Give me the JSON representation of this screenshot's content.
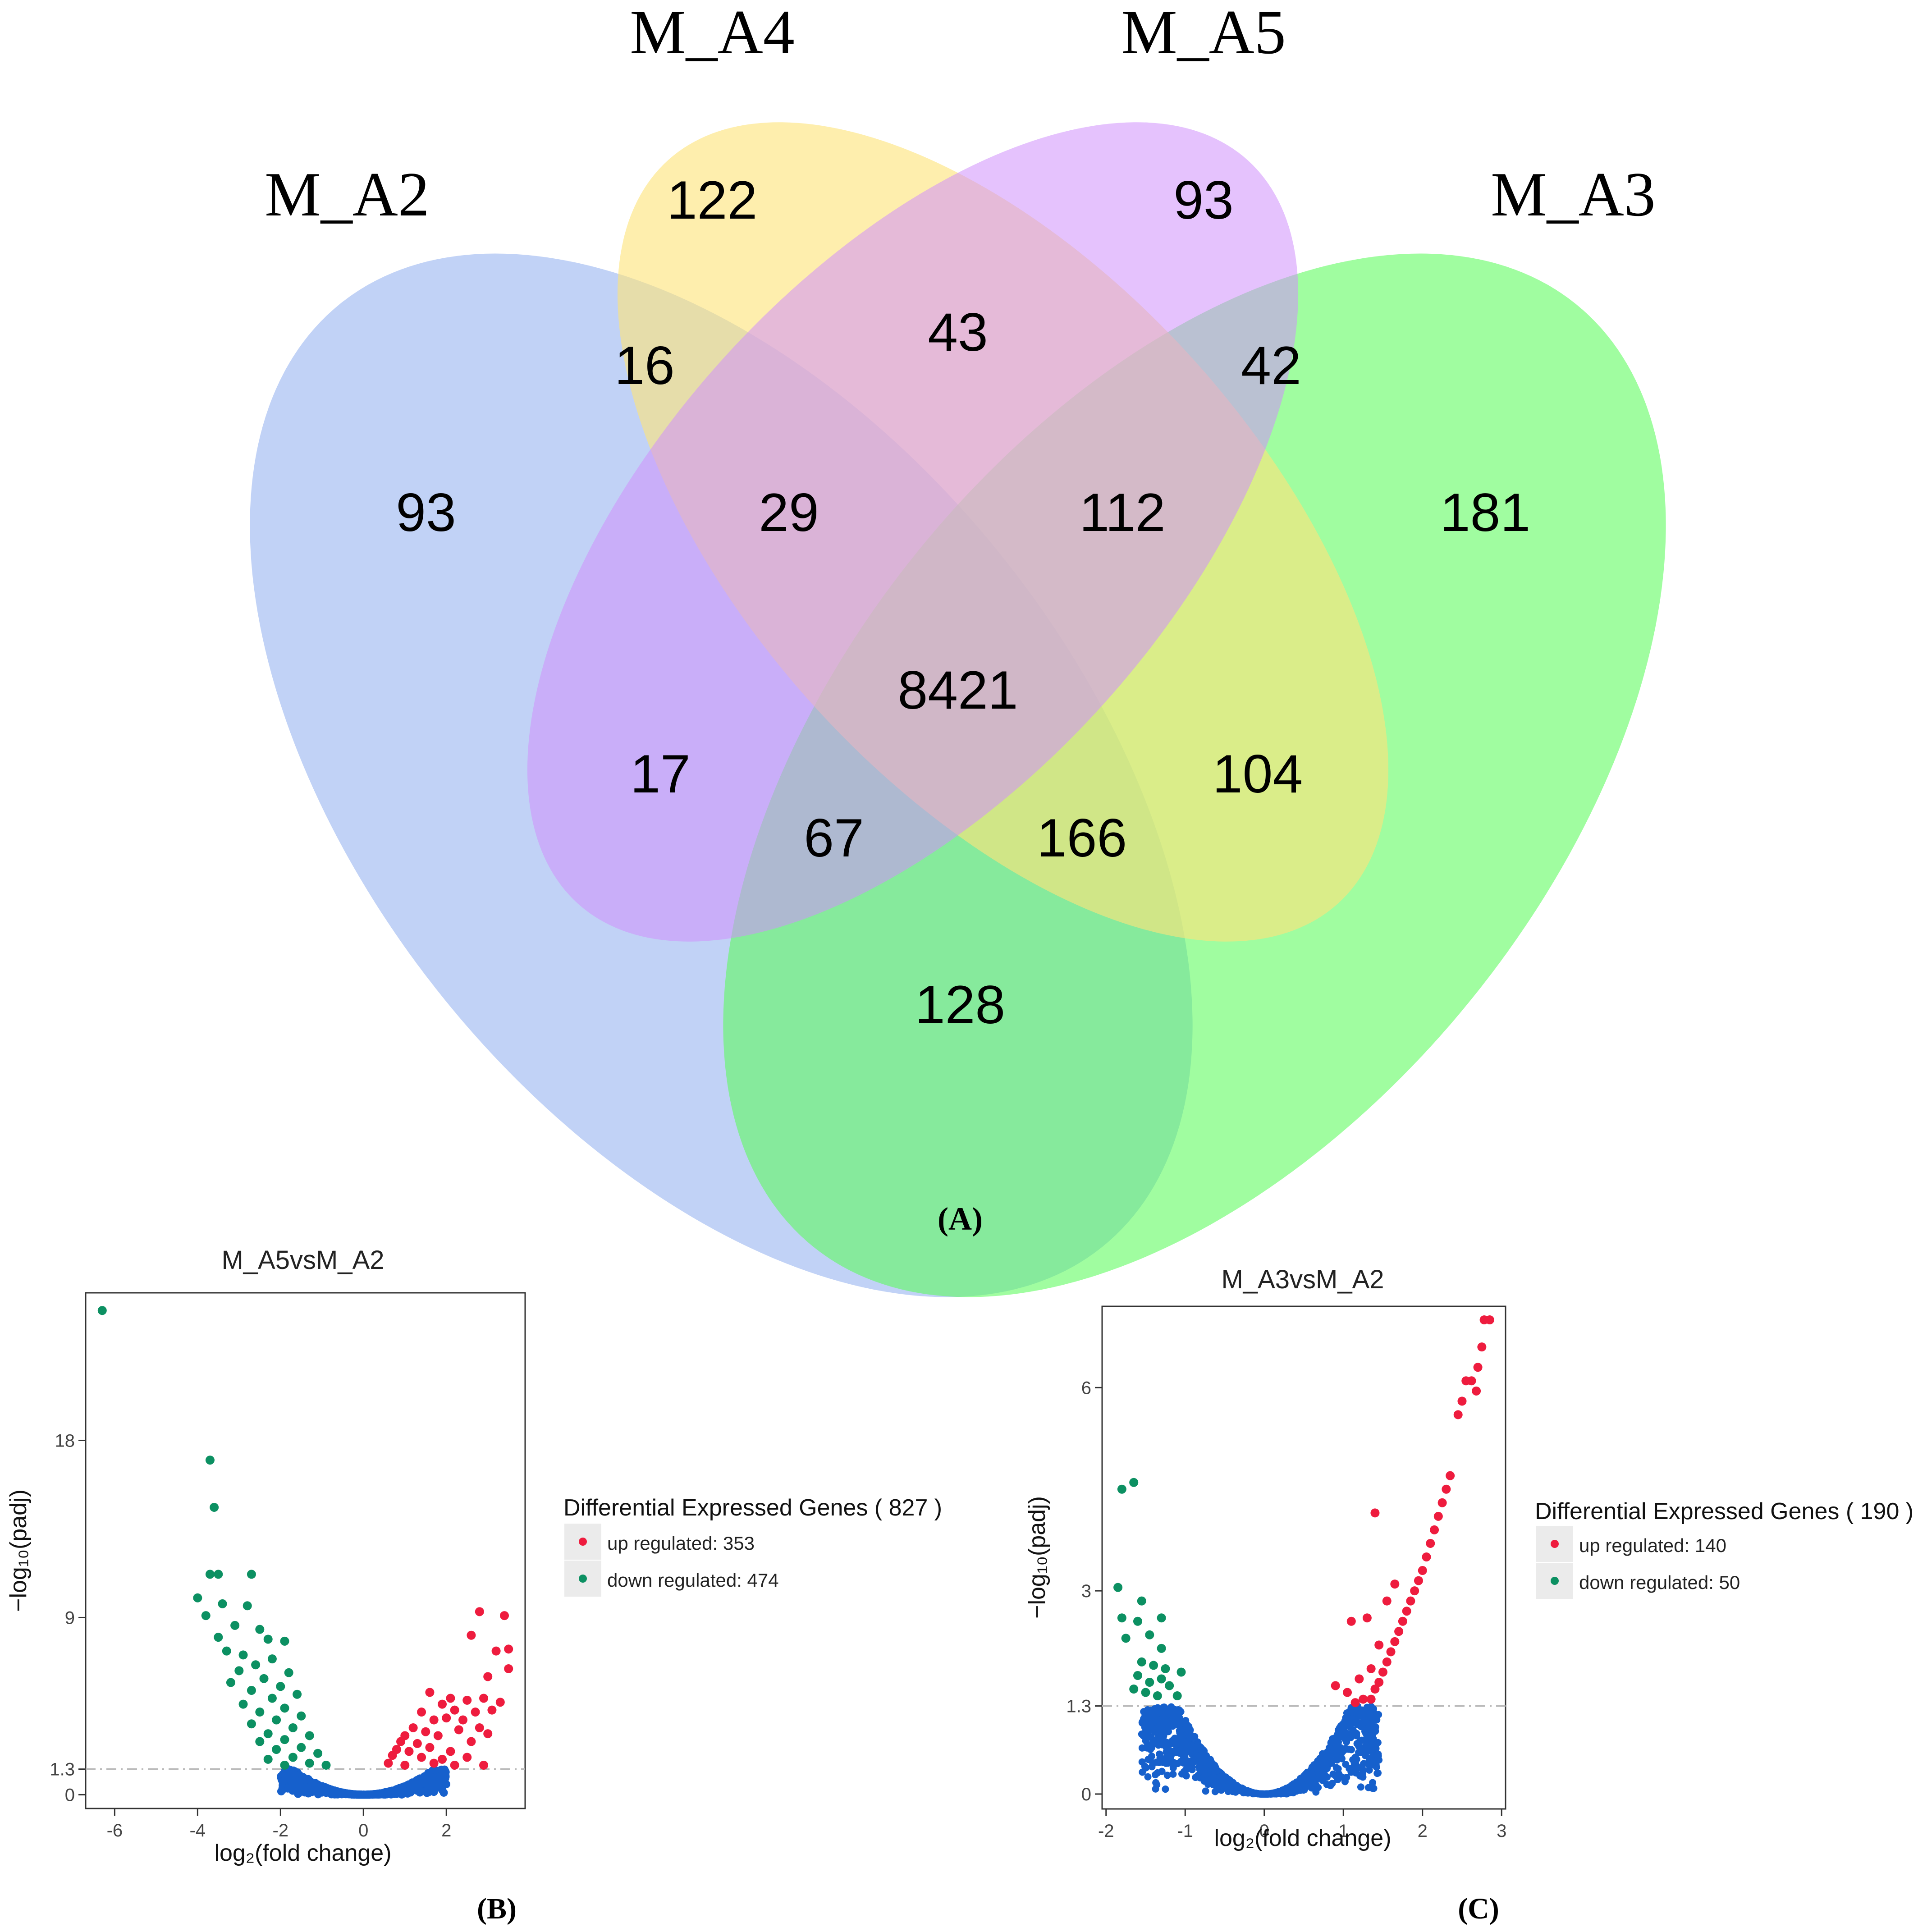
{
  "chart_data": [
    {
      "type": "venn",
      "panel_label": "(A)",
      "sets": [
        {
          "name": "M_A2",
          "color": "#a9c1f3"
        },
        {
          "name": "M_A4",
          "color": "#fde37a"
        },
        {
          "name": "M_A5",
          "color": "#cf90fb"
        },
        {
          "name": "M_A3",
          "color": "#5cfb5c"
        }
      ],
      "regions": [
        {
          "sets": [
            "M_A4"
          ],
          "value": "122"
        },
        {
          "sets": [
            "M_A5"
          ],
          "value": "93"
        },
        {
          "sets": [
            "M_A2",
            "M_A4"
          ],
          "value": "16"
        },
        {
          "sets": [
            "M_A4",
            "M_A5"
          ],
          "value": "43"
        },
        {
          "sets": [
            "M_A5",
            "M_A3"
          ],
          "value": "42"
        },
        {
          "sets": [
            "M_A2"
          ],
          "value": "93"
        },
        {
          "sets": [
            "M_A2",
            "M_A4",
            "M_A5"
          ],
          "value": "29"
        },
        {
          "sets": [
            "M_A4",
            "M_A5",
            "M_A3"
          ],
          "value": "112"
        },
        {
          "sets": [
            "M_A3"
          ],
          "value": "181"
        },
        {
          "sets": [
            "M_A2",
            "M_A4",
            "M_A5",
            "M_A3"
          ],
          "value": "8421"
        },
        {
          "sets": [
            "M_A2",
            "M_A5"
          ],
          "value": "17"
        },
        {
          "sets": [
            "M_A4",
            "M_A3"
          ],
          "value": "104"
        },
        {
          "sets": [
            "M_A2",
            "M_A5",
            "M_A3"
          ],
          "value": "67"
        },
        {
          "sets": [
            "M_A2",
            "M_A4",
            "M_A3"
          ],
          "value": "166"
        },
        {
          "sets": [
            "M_A2",
            "M_A3"
          ],
          "value": "128"
        }
      ]
    },
    {
      "type": "scatter",
      "subtype": "volcano",
      "panel_label": "(B)",
      "title": "M_A5vsM_A2",
      "xlabel": "log₂(fold change)",
      "ylabel": "−log₁₀(padj)",
      "xlim": [
        -6.7,
        3.9
      ],
      "ylim": [
        -0.7,
        25.5
      ],
      "xticks": [
        "-6",
        "-4",
        "-2",
        "0",
        "2"
      ],
      "yticks": [
        "0",
        "1.3",
        "9",
        "18"
      ],
      "threshold_y": 1.3,
      "legend_title": "Differential Expressed Genes ( 827 )",
      "series": [
        {
          "name": "up regulated: 353",
          "color": "#ee1c3e",
          "points": [
            [
              2.8,
              9.3
            ],
            [
              3.4,
              9.1
            ],
            [
              2.6,
              8.1
            ],
            [
              3.5,
              7.4
            ],
            [
              3.2,
              7.3
            ],
            [
              3.5,
              6.4
            ],
            [
              3.0,
              6.0
            ],
            [
              1.6,
              5.2
            ],
            [
              2.1,
              4.9
            ],
            [
              2.5,
              4.8
            ],
            [
              2.9,
              4.9
            ],
            [
              3.3,
              4.7
            ],
            [
              1.9,
              4.6
            ],
            [
              1.4,
              4.2
            ],
            [
              2.2,
              4.3
            ],
            [
              2.7,
              4.2
            ],
            [
              3.1,
              4.3
            ],
            [
              1.7,
              3.8
            ],
            [
              2.0,
              3.9
            ],
            [
              2.4,
              3.8
            ],
            [
              1.2,
              3.4
            ],
            [
              1.5,
              3.2
            ],
            [
              2.3,
              3.3
            ],
            [
              2.8,
              3.4
            ],
            [
              1.0,
              3.0
            ],
            [
              1.8,
              3.0
            ],
            [
              3.0,
              3.1
            ],
            [
              0.9,
              2.7
            ],
            [
              1.3,
              2.6
            ],
            [
              2.6,
              2.7
            ],
            [
              0.8,
              2.3
            ],
            [
              1.1,
              2.2
            ],
            [
              1.6,
              2.4
            ],
            [
              2.1,
              2.2
            ],
            [
              0.7,
              2.0
            ],
            [
              1.4,
              1.9
            ],
            [
              1.9,
              1.8
            ],
            [
              2.5,
              1.9
            ],
            [
              0.6,
              1.6
            ],
            [
              1.0,
              1.5
            ],
            [
              1.7,
              1.6
            ],
            [
              2.2,
              1.5
            ],
            [
              2.9,
              1.5
            ]
          ]
        },
        {
          "name": "down regulated: 474",
          "color": "#0c9062",
          "points": [
            [
              -6.3,
              24.6
            ],
            [
              -3.7,
              17.0
            ],
            [
              -3.6,
              14.6
            ],
            [
              -3.7,
              11.2
            ],
            [
              -3.5,
              11.2
            ],
            [
              -2.7,
              11.2
            ],
            [
              -4.0,
              10.0
            ],
            [
              -3.4,
              9.7
            ],
            [
              -2.8,
              9.6
            ],
            [
              -3.8,
              9.1
            ],
            [
              -3.1,
              8.6
            ],
            [
              -2.5,
              8.4
            ],
            [
              -3.5,
              8.0
            ],
            [
              -2.3,
              7.9
            ],
            [
              -1.9,
              7.8
            ],
            [
              -3.3,
              7.3
            ],
            [
              -2.9,
              7.1
            ],
            [
              -2.2,
              6.9
            ],
            [
              -2.6,
              6.6
            ],
            [
              -3.0,
              6.3
            ],
            [
              -1.8,
              6.2
            ],
            [
              -2.4,
              5.9
            ],
            [
              -3.2,
              5.7
            ],
            [
              -2.0,
              5.5
            ],
            [
              -2.7,
              5.3
            ],
            [
              -1.6,
              5.1
            ],
            [
              -2.2,
              4.9
            ],
            [
              -2.9,
              4.6
            ],
            [
              -1.9,
              4.4
            ],
            [
              -2.5,
              4.2
            ],
            [
              -1.5,
              4.0
            ],
            [
              -2.1,
              3.8
            ],
            [
              -2.7,
              3.6
            ],
            [
              -1.7,
              3.4
            ],
            [
              -2.3,
              3.1
            ],
            [
              -1.3,
              3.0
            ],
            [
              -1.9,
              2.8
            ],
            [
              -2.5,
              2.7
            ],
            [
              -1.5,
              2.4
            ],
            [
              -2.1,
              2.3
            ],
            [
              -1.1,
              2.1
            ],
            [
              -1.7,
              1.9
            ],
            [
              -2.3,
              1.8
            ],
            [
              -1.3,
              1.6
            ],
            [
              -0.9,
              1.5
            ],
            [
              -1.9,
              1.5
            ]
          ]
        }
      ]
    },
    {
      "type": "scatter",
      "subtype": "volcano",
      "panel_label": "(C)",
      "title": "M_A3vsM_A2",
      "xlabel": "log₂(fold change)",
      "ylabel": "−log₁₀(padj)",
      "xlim": [
        -2.05,
        3.05
      ],
      "ylim": [
        -0.22,
        7.2
      ],
      "xticks": [
        "-2",
        "-1",
        "0",
        "1",
        "2",
        "3"
      ],
      "yticks": [
        "0",
        "1.3",
        "3",
        "6"
      ],
      "threshold_y": 1.3,
      "legend_title": "Differential Expressed Genes ( 190 )",
      "series": [
        {
          "name": "up regulated: 140",
          "color": "#ee1c3e",
          "points": [
            [
              2.85,
              7.0
            ],
            [
              2.78,
              7.0
            ],
            [
              2.75,
              6.6
            ],
            [
              2.7,
              6.3
            ],
            [
              2.62,
              6.1
            ],
            [
              2.55,
              6.1
            ],
            [
              2.68,
              5.95
            ],
            [
              2.5,
              5.8
            ],
            [
              2.45,
              5.6
            ],
            [
              2.35,
              4.7
            ],
            [
              2.3,
              4.5
            ],
            [
              2.25,
              4.3
            ],
            [
              2.2,
              4.1
            ],
            [
              2.15,
              3.9
            ],
            [
              1.4,
              4.15
            ],
            [
              2.1,
              3.7
            ],
            [
              2.05,
              3.5
            ],
            [
              2.0,
              3.3
            ],
            [
              1.95,
              3.15
            ],
            [
              1.65,
              3.1
            ],
            [
              1.9,
              3.0
            ],
            [
              1.85,
              2.85
            ],
            [
              1.55,
              2.85
            ],
            [
              1.8,
              2.7
            ],
            [
              1.3,
              2.6
            ],
            [
              1.75,
              2.55
            ],
            [
              1.7,
              2.4
            ],
            [
              1.65,
              2.25
            ],
            [
              1.1,
              2.55
            ],
            [
              1.6,
              2.1
            ],
            [
              1.45,
              2.2
            ],
            [
              1.55,
              1.95
            ],
            [
              1.5,
              1.8
            ],
            [
              1.35,
              1.85
            ],
            [
              1.45,
              1.65
            ],
            [
              1.2,
              1.7
            ],
            [
              1.4,
              1.55
            ],
            [
              1.05,
              1.5
            ],
            [
              0.9,
              1.6
            ],
            [
              1.35,
              1.4
            ],
            [
              1.25,
              1.4
            ],
            [
              1.15,
              1.35
            ]
          ]
        },
        {
          "name": "down regulated: 50",
          "color": "#0c9062",
          "points": [
            [
              -1.8,
              4.5
            ],
            [
              -1.65,
              4.6
            ],
            [
              -1.85,
              3.05
            ],
            [
              -1.55,
              2.85
            ],
            [
              -1.8,
              2.6
            ],
            [
              -1.6,
              2.55
            ],
            [
              -1.3,
              2.6
            ],
            [
              -1.75,
              2.3
            ],
            [
              -1.45,
              2.35
            ],
            [
              -1.3,
              2.15
            ],
            [
              -1.55,
              1.95
            ],
            [
              -1.4,
              1.9
            ],
            [
              -1.25,
              1.85
            ],
            [
              -1.05,
              1.8
            ],
            [
              -1.6,
              1.75
            ],
            [
              -1.45,
              1.65
            ],
            [
              -1.3,
              1.7
            ],
            [
              -1.2,
              1.6
            ],
            [
              -1.5,
              1.5
            ],
            [
              -1.35,
              1.45
            ],
            [
              -1.65,
              1.55
            ],
            [
              -1.1,
              1.45
            ]
          ]
        }
      ]
    }
  ]
}
